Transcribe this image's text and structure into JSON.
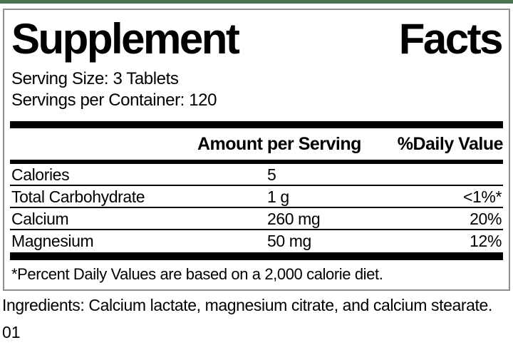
{
  "colors": {
    "top_bar": "#4c7353",
    "box_border": "#8f8f8f",
    "rule": "#000000"
  },
  "title": {
    "word1": "Supplement",
    "word2": "Facts"
  },
  "serving": {
    "size": "Serving Size: 3 Tablets",
    "per_container": "Servings per Container: 120"
  },
  "table": {
    "headers": {
      "amount": "Amount per Serving",
      "daily_value": "%Daily Value"
    },
    "rows": [
      {
        "label": "Calories",
        "amount": "5",
        "dv": ""
      },
      {
        "label": "Total Carbohydrate",
        "amount": "1 g",
        "dv": "<1%*"
      },
      {
        "label": "Calcium",
        "amount": "260 mg",
        "dv": "20%"
      },
      {
        "label": "Magnesium",
        "amount": "50 mg",
        "dv": "12%"
      }
    ],
    "footnote": "*Percent Daily Values are based on a 2,000 calorie diet."
  },
  "ingredients": "Ingredients: Calcium lactate, magnesium citrate, and calcium stearate.",
  "footer_code": "01"
}
